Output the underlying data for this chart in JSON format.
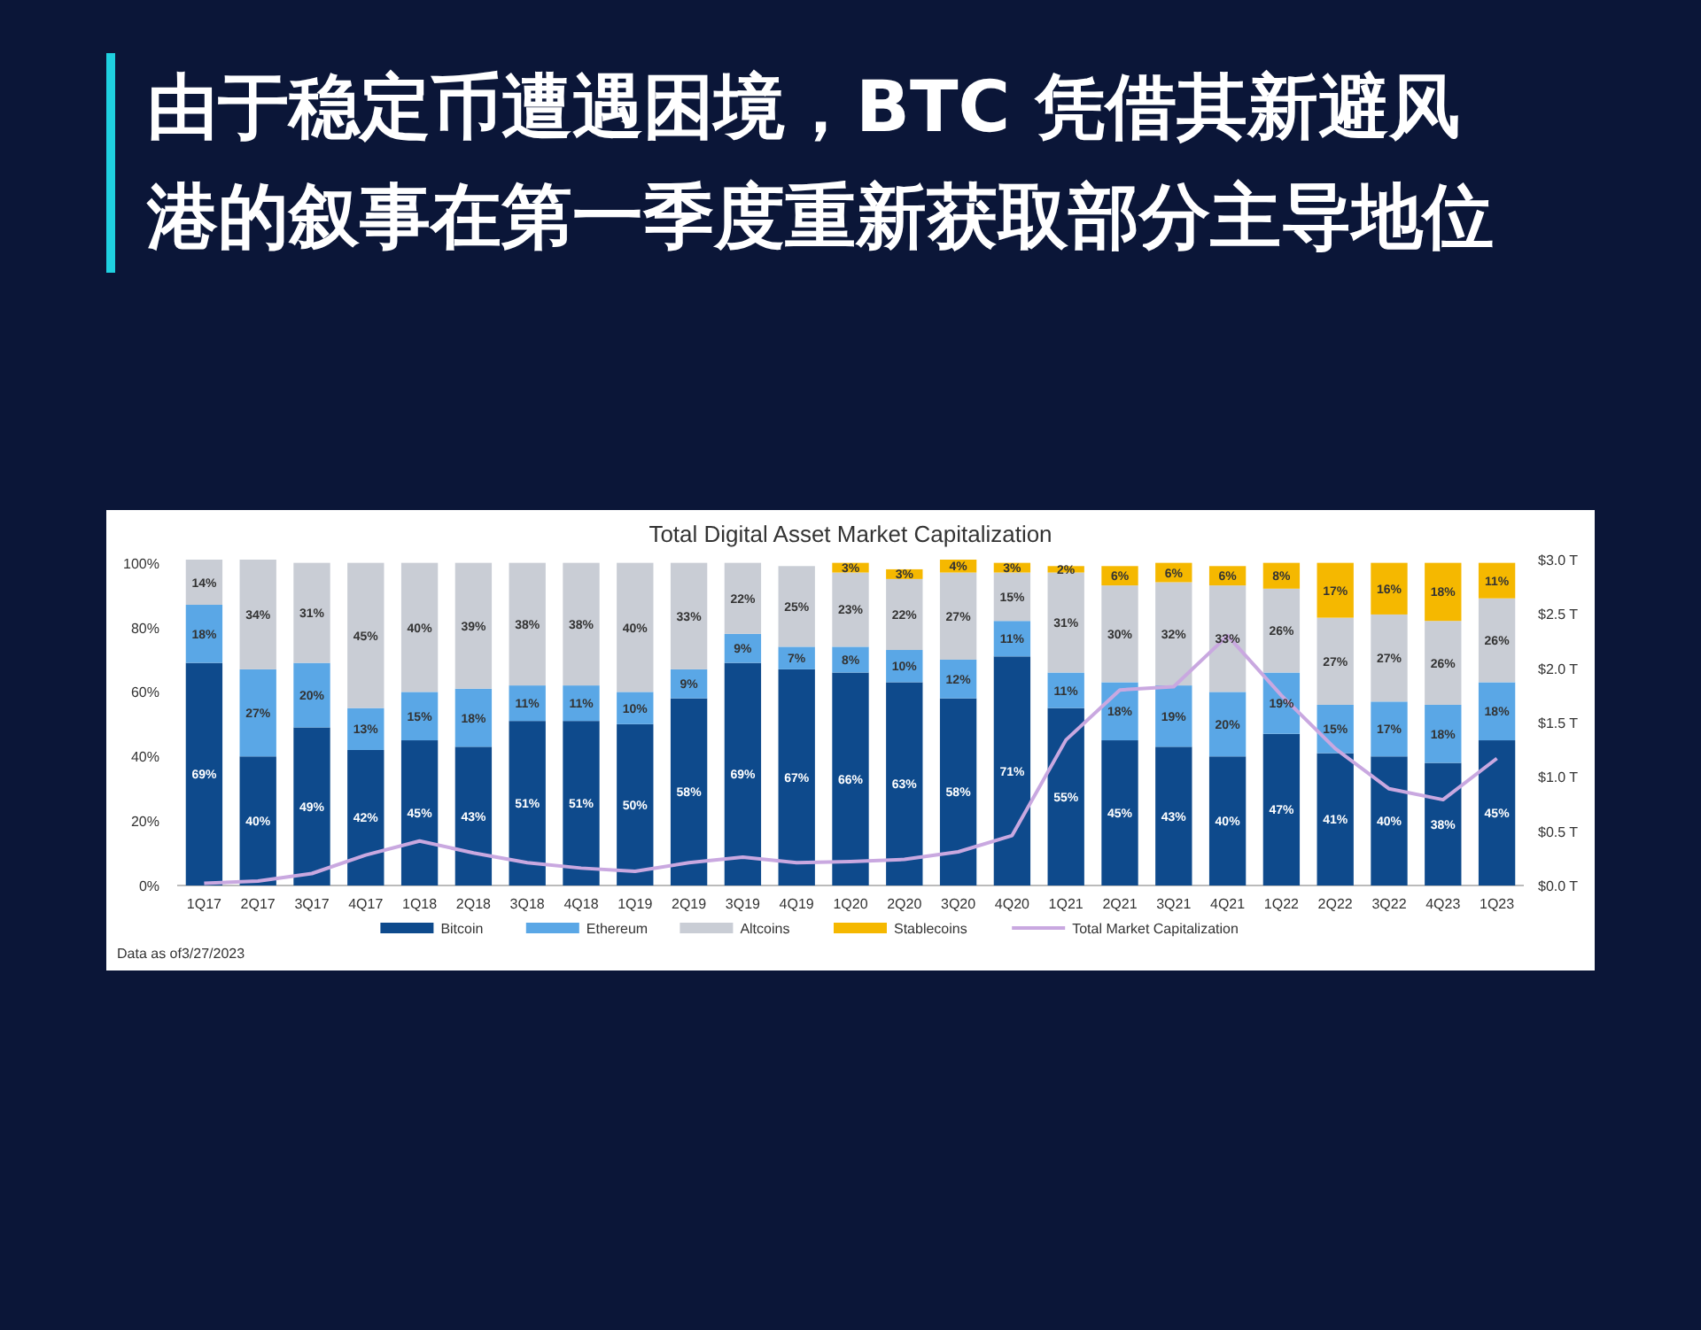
{
  "chart_data": {
    "type": "bar",
    "stacked": true,
    "title": "由于稳定币遭遇困境，BTC 凭借其新避风港的叙事在第一季度重新获取部分主导地位",
    "subtitle": "Total Digital Asset Market Capitalization",
    "categories": [
      "1Q17",
      "2Q17",
      "3Q17",
      "4Q17",
      "1Q18",
      "2Q18",
      "3Q18",
      "4Q18",
      "1Q19",
      "2Q19",
      "3Q19",
      "4Q19",
      "1Q20",
      "2Q20",
      "3Q20",
      "4Q20",
      "1Q21",
      "2Q21",
      "3Q21",
      "4Q21",
      "1Q22",
      "2Q22",
      "3Q22",
      "4Q23",
      "1Q23"
    ],
    "series": [
      {
        "name": "Bitcoin",
        "color": "#0e4a8c",
        "values": [
          69,
          40,
          49,
          42,
          45,
          43,
          51,
          51,
          50,
          58,
          69,
          67,
          66,
          63,
          58,
          71,
          55,
          45,
          43,
          40,
          47,
          41,
          40,
          38,
          45
        ],
        "value_labels": [
          "69%",
          "40%",
          "49%",
          "42%",
          "45%",
          "43%",
          "51%",
          "51%",
          "50%",
          "58%",
          "69%",
          "67%",
          "66%",
          "63%",
          "58%",
          "71%",
          "55%",
          "45%",
          "43%",
          "40%",
          "47%",
          "41%",
          "40%",
          "38%",
          "45%"
        ]
      },
      {
        "name": "Ethereum",
        "color": "#5aa7e6",
        "values": [
          18,
          27,
          20,
          13,
          15,
          18,
          11,
          11,
          10,
          9,
          9,
          7,
          8,
          10,
          12,
          11,
          11,
          18,
          19,
          20,
          19,
          15,
          17,
          18,
          18
        ],
        "value_labels": [
          "18%",
          "27%",
          "20%",
          "13%",
          "15%",
          "18%",
          "11%",
          "11%",
          "10%",
          "9%",
          "9%",
          "7%",
          "8%",
          "10%",
          "12%",
          "11%",
          "11%",
          "18%",
          "19%",
          "20%",
          "19%",
          "15%",
          "17%",
          "18%",
          "18%"
        ]
      },
      {
        "name": "Altcoins",
        "color": "#c9cdd5",
        "values": [
          14,
          34,
          31,
          45,
          40,
          39,
          38,
          38,
          40,
          33,
          22,
          25,
          23,
          22,
          27,
          15,
          31,
          30,
          32,
          33,
          26,
          27,
          27,
          26,
          26
        ],
        "value_labels": [
          "14%",
          "34%",
          "31%",
          "45%",
          "40%",
          "39%",
          "38%",
          "38%",
          "40%",
          "33%",
          "22%",
          "25%",
          "23%",
          "22%",
          "27%",
          "15%",
          "31%",
          "30%",
          "32%",
          "33%",
          "26%",
          "27%",
          "27%",
          "26%",
          "26%"
        ]
      },
      {
        "name": "Stablecoins",
        "color": "#f5b800",
        "values": [
          null,
          null,
          null,
          null,
          null,
          null,
          null,
          null,
          null,
          null,
          null,
          null,
          3,
          3,
          4,
          3,
          2,
          6,
          6,
          6,
          8,
          17,
          16,
          18,
          11
        ],
        "value_labels": [
          null,
          null,
          null,
          null,
          null,
          null,
          null,
          null,
          null,
          null,
          null,
          null,
          "3%",
          "3%",
          "4%",
          "3%",
          "2%",
          "6%",
          "6%",
          "6%",
          "8%",
          "17%",
          "16%",
          "18%",
          "11%"
        ]
      },
      {
        "name": "Total Market Capitalization",
        "type": "line",
        "axis": "y2",
        "color": "#c9a8e0",
        "values": [
          0.02,
          0.04,
          0.11,
          0.28,
          0.41,
          0.3,
          0.21,
          0.16,
          0.13,
          0.21,
          0.26,
          0.21,
          0.22,
          0.24,
          0.31,
          0.46,
          1.34,
          1.8,
          1.83,
          2.3,
          1.75,
          1.26,
          0.89,
          0.79,
          1.17
        ]
      }
    ],
    "ylim": [
      0,
      101
    ],
    "yticks": [
      {
        "value": 0,
        "label": "0%"
      },
      {
        "value": 20,
        "label": "20%"
      },
      {
        "value": 40,
        "label": "40%"
      },
      {
        "value": 60,
        "label": "60%"
      },
      {
        "value": 80,
        "label": "80%"
      },
      {
        "value": 100,
        "label": "100%"
      }
    ],
    "y2lim": [
      0,
      3
    ],
    "y2ticks": [
      {
        "value": 0,
        "label": "$0.0 T"
      },
      {
        "value": 0.5,
        "label": "$0.5 T"
      },
      {
        "value": 1,
        "label": "$1.0 T"
      },
      {
        "value": 1.5,
        "label": "$1.5 T"
      },
      {
        "value": 2,
        "label": "$2.0 T"
      },
      {
        "value": 2.5,
        "label": "$2.5 T"
      },
      {
        "value": 3,
        "label": "$3.0 T"
      }
    ],
    "legend": "bottom",
    "annotations": [
      "Data as of3/27/2023"
    ]
  }
}
